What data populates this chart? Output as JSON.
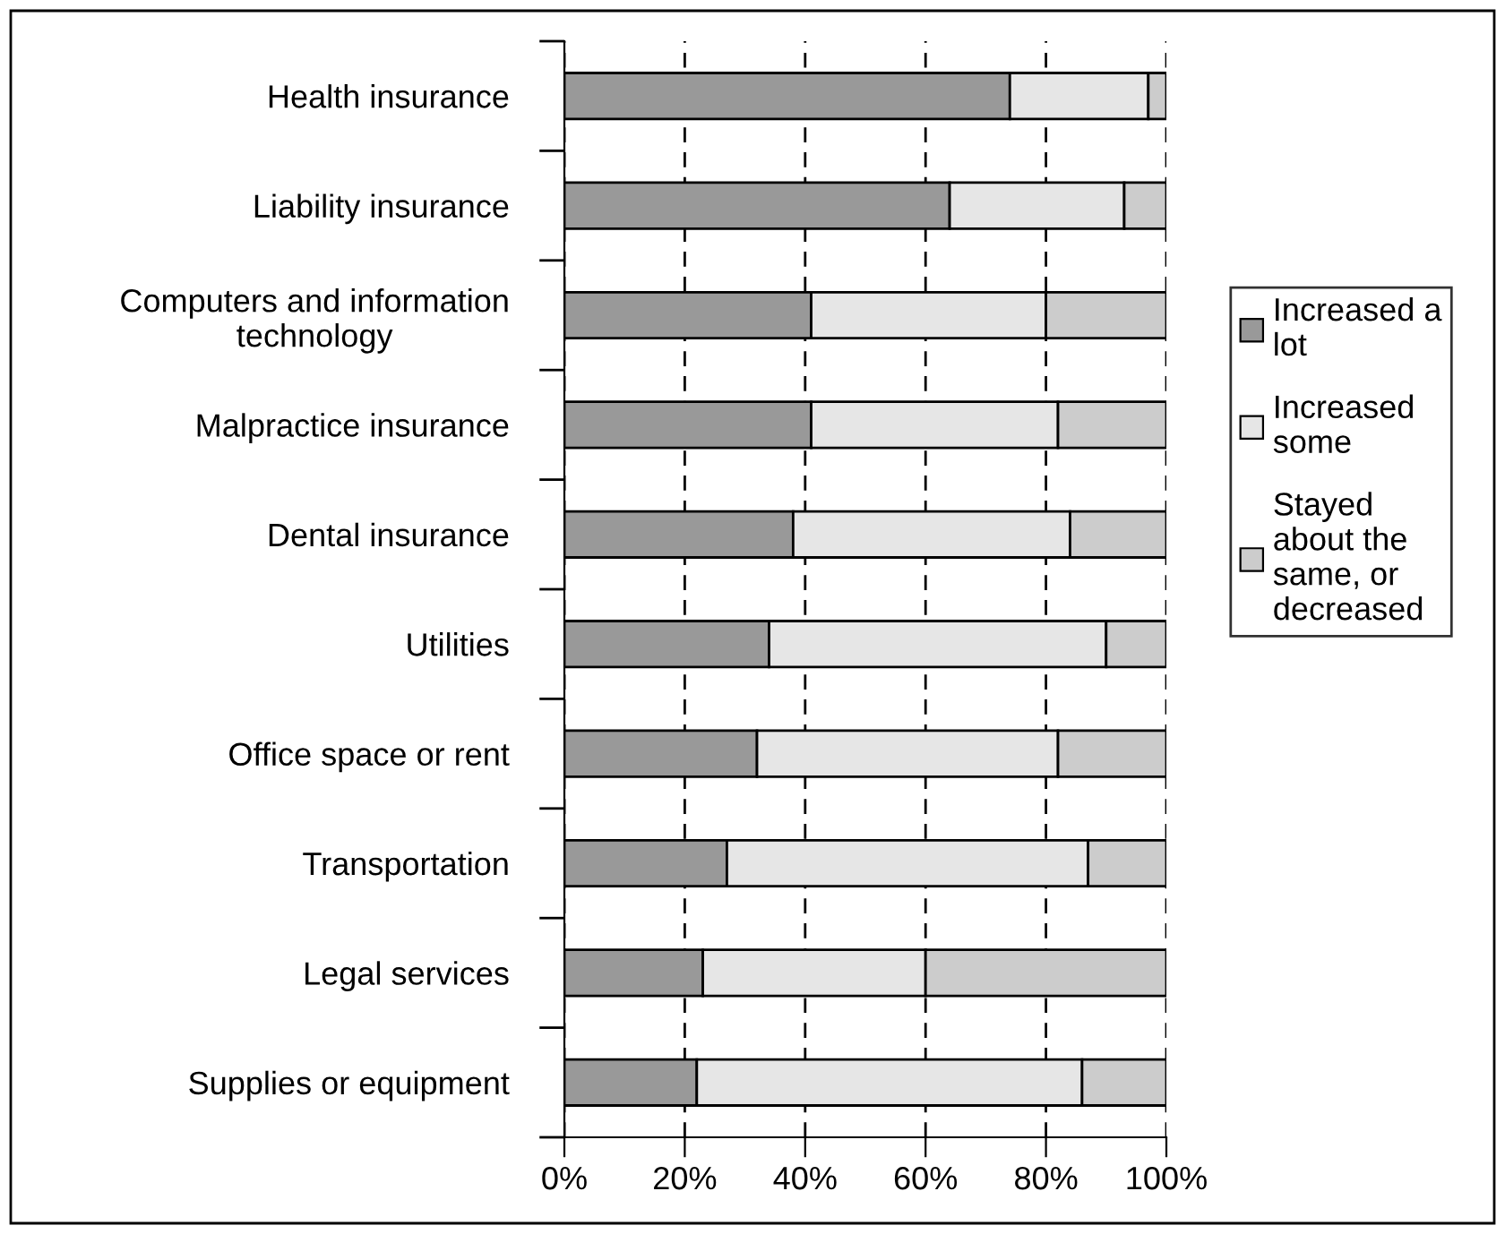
{
  "chart_data": {
    "type": "bar",
    "orientation": "horizontal",
    "stacked": true,
    "categories": [
      "Health insurance",
      "Liability insurance",
      "Computers and information technology",
      "Malpractice insurance",
      "Dental insurance",
      "Utilities",
      "Office space or rent",
      "Transportation",
      "Legal services",
      "Supplies or equipment"
    ],
    "series": [
      {
        "name": "Increased a lot",
        "color": "#999999",
        "values": [
          74,
          64,
          41,
          41,
          38,
          34,
          32,
          27,
          23,
          22
        ]
      },
      {
        "name": "Increased some",
        "color": "#e6e6e6",
        "values": [
          23,
          29,
          39,
          41,
          46,
          56,
          50,
          60,
          37,
          64
        ]
      },
      {
        "name": "Stayed about the same, or decreased",
        "color": "#cccccc",
        "values": [
          3,
          7,
          20,
          18,
          16,
          10,
          18,
          13,
          40,
          14
        ]
      }
    ],
    "xlim": [
      0,
      100
    ],
    "xticks": [
      {
        "value": 0,
        "label": "0%"
      },
      {
        "value": 20,
        "label": "20%"
      },
      {
        "value": 40,
        "label": "40%"
      },
      {
        "value": 60,
        "label": "60%"
      },
      {
        "value": 80,
        "label": "80%"
      },
      {
        "value": 100,
        "label": "100%"
      }
    ],
    "grid": "x",
    "legend": "right"
  }
}
